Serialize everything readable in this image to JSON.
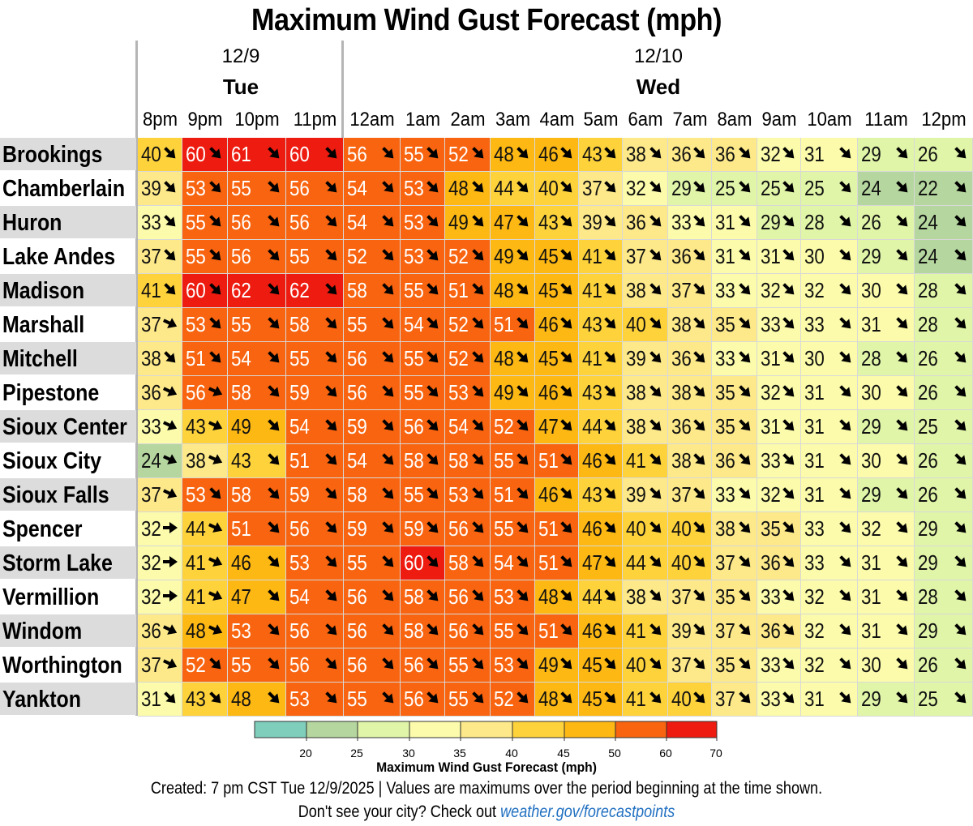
{
  "chart_data": {
    "type": "heatmap",
    "title": "Maximum Wind Gust Forecast (mph)",
    "dates": [
      {
        "date": "12/9",
        "day": "Tue"
      },
      {
        "date": "12/10",
        "day": "Wed"
      }
    ],
    "hours": [
      "8pm",
      "9pm",
      "10pm",
      "11pm",
      "12am",
      "1am",
      "2am",
      "3am",
      "4am",
      "5am",
      "6am",
      "7am",
      "8am",
      "9am",
      "10am",
      "11am",
      "12pm"
    ],
    "rows": [
      {
        "city": "Brookings",
        "values": [
          40,
          60,
          61,
          60,
          56,
          55,
          52,
          48,
          46,
          43,
          38,
          36,
          36,
          32,
          31,
          29,
          26
        ],
        "dirs": [
          "se",
          "se",
          "se",
          "se",
          "se",
          "se",
          "se",
          "se",
          "se",
          "se",
          "se",
          "se",
          "se",
          "se",
          "se",
          "se",
          "se"
        ]
      },
      {
        "city": "Chamberlain",
        "values": [
          39,
          53,
          55,
          56,
          54,
          53,
          48,
          44,
          40,
          37,
          32,
          29,
          25,
          25,
          25,
          24,
          22
        ],
        "dirs": [
          "se",
          "se",
          "se",
          "se",
          "se",
          "se",
          "se",
          "se",
          "se",
          "se",
          "se",
          "se",
          "se",
          "se",
          "se",
          "se",
          "se"
        ]
      },
      {
        "city": "Huron",
        "values": [
          33,
          55,
          56,
          56,
          54,
          53,
          49,
          47,
          43,
          39,
          36,
          33,
          31,
          29,
          28,
          26,
          24
        ],
        "dirs": [
          "se",
          "se",
          "se",
          "se",
          "se",
          "se",
          "se",
          "se",
          "se",
          "se",
          "se",
          "se",
          "se",
          "se",
          "se",
          "se",
          "se"
        ]
      },
      {
        "city": "Lake Andes",
        "values": [
          37,
          55,
          56,
          55,
          52,
          53,
          52,
          49,
          45,
          41,
          37,
          36,
          31,
          31,
          30,
          29,
          24
        ],
        "dirs": [
          "se",
          "se",
          "se",
          "se",
          "se",
          "se",
          "se",
          "se",
          "se",
          "se",
          "se",
          "se",
          "se",
          "se",
          "se",
          "se",
          "se"
        ]
      },
      {
        "city": "Madison",
        "values": [
          41,
          60,
          62,
          62,
          58,
          55,
          51,
          48,
          45,
          41,
          38,
          37,
          33,
          32,
          32,
          30,
          28
        ],
        "dirs": [
          "se",
          "se",
          "se",
          "se",
          "se",
          "se",
          "se",
          "se",
          "se",
          "se",
          "se",
          "se",
          "se",
          "se",
          "se",
          "se",
          "se"
        ]
      },
      {
        "city": "Marshall",
        "values": [
          37,
          53,
          55,
          58,
          55,
          54,
          52,
          51,
          46,
          43,
          40,
          38,
          35,
          33,
          33,
          31,
          28
        ],
        "dirs": [
          "ese",
          "se",
          "se",
          "se",
          "se",
          "se",
          "se",
          "se",
          "se",
          "se",
          "se",
          "se",
          "se",
          "se",
          "se",
          "se",
          "se"
        ]
      },
      {
        "city": "Mitchell",
        "values": [
          38,
          51,
          54,
          55,
          56,
          55,
          52,
          48,
          45,
          41,
          39,
          36,
          33,
          31,
          30,
          28,
          26
        ],
        "dirs": [
          "se",
          "se",
          "se",
          "se",
          "se",
          "se",
          "se",
          "se",
          "se",
          "se",
          "se",
          "se",
          "se",
          "se",
          "se",
          "se",
          "se"
        ]
      },
      {
        "city": "Pipestone",
        "values": [
          36,
          56,
          58,
          59,
          56,
          55,
          53,
          49,
          46,
          43,
          38,
          38,
          35,
          32,
          31,
          30,
          26
        ],
        "dirs": [
          "ese",
          "ese",
          "se",
          "se",
          "se",
          "se",
          "se",
          "se",
          "se",
          "se",
          "se",
          "se",
          "se",
          "se",
          "se",
          "se",
          "se"
        ]
      },
      {
        "city": "Sioux Center",
        "values": [
          33,
          43,
          49,
          54,
          59,
          56,
          54,
          52,
          47,
          44,
          38,
          36,
          35,
          31,
          31,
          29,
          25
        ],
        "dirs": [
          "ese",
          "ese",
          "se",
          "se",
          "se",
          "se",
          "se",
          "se",
          "se",
          "se",
          "se",
          "se",
          "se",
          "se",
          "se",
          "se",
          "se"
        ]
      },
      {
        "city": "Sioux City",
        "values": [
          24,
          38,
          43,
          51,
          54,
          58,
          58,
          55,
          51,
          46,
          41,
          38,
          36,
          33,
          31,
          30,
          26
        ],
        "dirs": [
          "ese",
          "ese",
          "se",
          "se",
          "se",
          "se",
          "se",
          "se",
          "se",
          "se",
          "se",
          "se",
          "se",
          "se",
          "se",
          "se",
          "se"
        ]
      },
      {
        "city": "Sioux Falls",
        "values": [
          37,
          53,
          58,
          59,
          58,
          55,
          53,
          51,
          46,
          43,
          39,
          37,
          33,
          32,
          31,
          29,
          26
        ],
        "dirs": [
          "ese",
          "se",
          "se",
          "se",
          "se",
          "se",
          "se",
          "se",
          "se",
          "se",
          "se",
          "se",
          "se",
          "se",
          "se",
          "se",
          "se"
        ]
      },
      {
        "city": "Spencer",
        "values": [
          32,
          44,
          51,
          56,
          59,
          59,
          56,
          55,
          51,
          46,
          40,
          40,
          38,
          35,
          33,
          32,
          29
        ],
        "dirs": [
          "e",
          "ese",
          "se",
          "se",
          "se",
          "se",
          "se",
          "se",
          "se",
          "se",
          "se",
          "se",
          "se",
          "se",
          "se",
          "se",
          "se"
        ]
      },
      {
        "city": "Storm Lake",
        "values": [
          32,
          41,
          46,
          53,
          55,
          60,
          58,
          54,
          51,
          47,
          44,
          40,
          37,
          36,
          33,
          31,
          29
        ],
        "dirs": [
          "e",
          "ese",
          "se",
          "se",
          "se",
          "se",
          "se",
          "se",
          "se",
          "se",
          "se",
          "se",
          "se",
          "se",
          "se",
          "se",
          "se"
        ]
      },
      {
        "city": "Vermillion",
        "values": [
          32,
          41,
          47,
          54,
          56,
          58,
          56,
          53,
          48,
          44,
          38,
          37,
          35,
          33,
          32,
          31,
          28
        ],
        "dirs": [
          "e",
          "ese",
          "se",
          "se",
          "se",
          "se",
          "se",
          "se",
          "se",
          "se",
          "se",
          "se",
          "se",
          "se",
          "se",
          "se",
          "se"
        ]
      },
      {
        "city": "Windom",
        "values": [
          36,
          48,
          53,
          56,
          56,
          58,
          56,
          55,
          51,
          46,
          41,
          39,
          37,
          36,
          32,
          31,
          29
        ],
        "dirs": [
          "ese",
          "ese",
          "se",
          "se",
          "se",
          "se",
          "se",
          "se",
          "se",
          "se",
          "se",
          "se",
          "se",
          "se",
          "se",
          "se",
          "se"
        ]
      },
      {
        "city": "Worthington",
        "values": [
          37,
          52,
          55,
          56,
          56,
          56,
          55,
          53,
          49,
          45,
          40,
          37,
          35,
          33,
          32,
          30,
          26
        ],
        "dirs": [
          "ese",
          "se",
          "se",
          "se",
          "se",
          "se",
          "se",
          "se",
          "se",
          "se",
          "se",
          "se",
          "se",
          "se",
          "se",
          "se",
          "se"
        ]
      },
      {
        "city": "Yankton",
        "values": [
          31,
          43,
          48,
          53,
          55,
          56,
          55,
          52,
          48,
          45,
          41,
          40,
          37,
          33,
          31,
          29,
          25
        ],
        "dirs": [
          "se",
          "se",
          "se",
          "se",
          "se",
          "se",
          "se",
          "se",
          "se",
          "se",
          "se",
          "se",
          "se",
          "se",
          "se",
          "se",
          "se"
        ]
      }
    ],
    "color_scale": {
      "label": "Maximum Wind Gust Forecast (mph)",
      "ticks": [
        20,
        25,
        30,
        35,
        40,
        45,
        50,
        60,
        70
      ],
      "bins": [
        {
          "min": null,
          "max": 20,
          "color": "#7fcdbb"
        },
        {
          "min": 20,
          "max": 25,
          "color": "#b5d69e"
        },
        {
          "min": 25,
          "max": 30,
          "color": "#e0f5a8"
        },
        {
          "min": 30,
          "max": 35,
          "color": "#fbfbab"
        },
        {
          "min": 35,
          "max": 40,
          "color": "#fde98a"
        },
        {
          "min": 40,
          "max": 45,
          "color": "#fdd23b"
        },
        {
          "min": 45,
          "max": 50,
          "color": "#fdb813"
        },
        {
          "min": 50,
          "max": 60,
          "color": "#f8640f"
        },
        {
          "min": 60,
          "max": 70,
          "color": "#ee1b10"
        }
      ]
    }
  },
  "footer": {
    "created": "Created: 7 pm CST Tue 12/9/2025  |  Values are maximums over the period beginning at the time shown.",
    "cta": "Don't see your city? Check out",
    "link": "weather.gov/forecastpoints"
  }
}
